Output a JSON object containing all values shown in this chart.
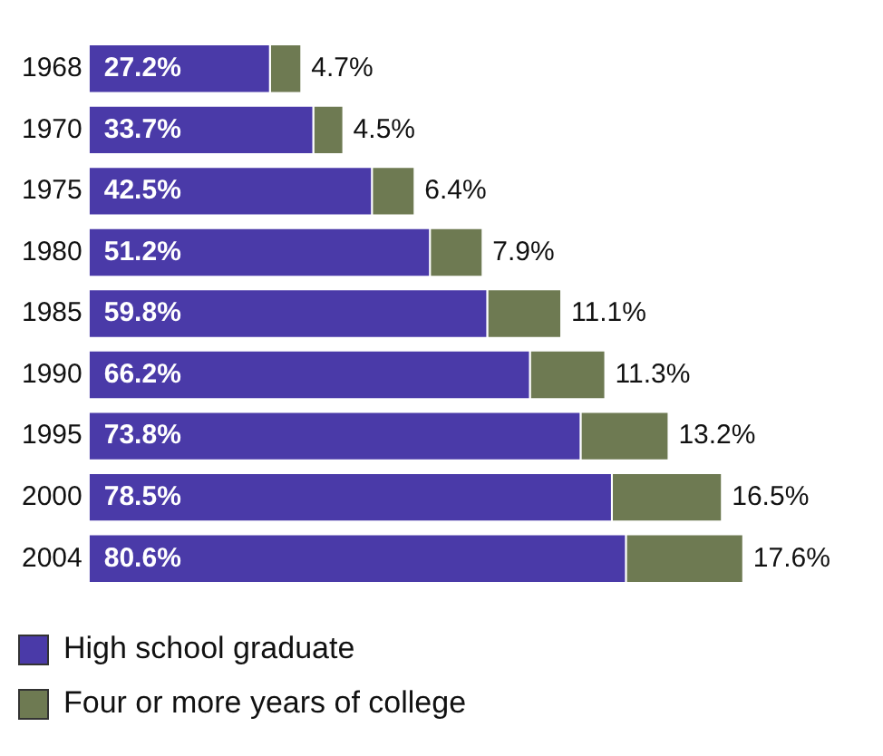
{
  "chart_data": {
    "type": "bar",
    "orientation": "horizontal",
    "stacked": true,
    "legend": "bottom left",
    "grid": false,
    "tick_labels": "y",
    "categories": [
      "1968",
      "1970",
      "1975",
      "1980",
      "1985",
      "1990",
      "1995",
      "2000",
      "2004"
    ],
    "series": [
      {
        "name": "High school graduate",
        "color": "#4a3aa8",
        "values": [
          27.2,
          33.7,
          42.5,
          51.2,
          59.8,
          66.2,
          73.8,
          78.5,
          80.6
        ],
        "value_labels": [
          "27.2%",
          "33.7%",
          "42.5%",
          "51.2%",
          "59.8%",
          "66.2%",
          "73.8%",
          "78.5%",
          "80.6%"
        ]
      },
      {
        "name": "Four or more years of college",
        "color": "#6e7a52",
        "values": [
          4.7,
          4.5,
          6.4,
          7.9,
          11.1,
          11.3,
          13.2,
          16.5,
          17.6
        ],
        "value_labels": [
          "4.7%",
          "4.5%",
          "6.4%",
          "7.9%",
          "11.1%",
          "11.3%",
          "13.2%",
          "16.5%",
          "17.6%"
        ]
      }
    ]
  }
}
